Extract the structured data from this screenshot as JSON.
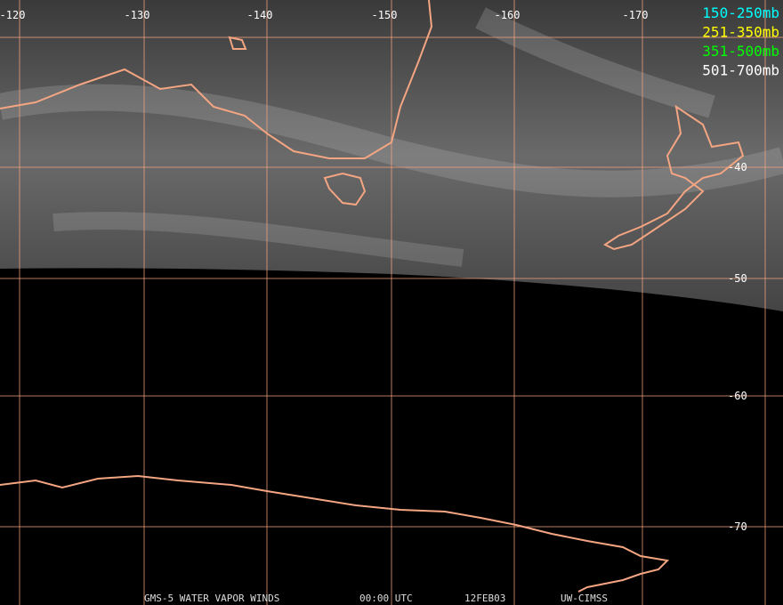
{
  "grid": {
    "lon_labels": [
      "-120",
      "-130",
      "-140",
      "-150",
      "-160",
      "-170"
    ],
    "lat_labels": [
      "-40",
      "-50",
      "-60",
      "-70"
    ]
  },
  "legend": [
    {
      "label": "150-250mb",
      "color": "#00ffff"
    },
    {
      "label": "251-350mb",
      "color": "#ffff00"
    },
    {
      "label": "351-500mb",
      "color": "#00ff00"
    },
    {
      "label": "501-700mb",
      "color": "#ffffff"
    }
  ],
  "footer": {
    "product": "GMS-5 WATER VAPOR WINDS",
    "time": "00:00 UTC",
    "date": "12FEB03",
    "source": "UW-CIMSS"
  }
}
